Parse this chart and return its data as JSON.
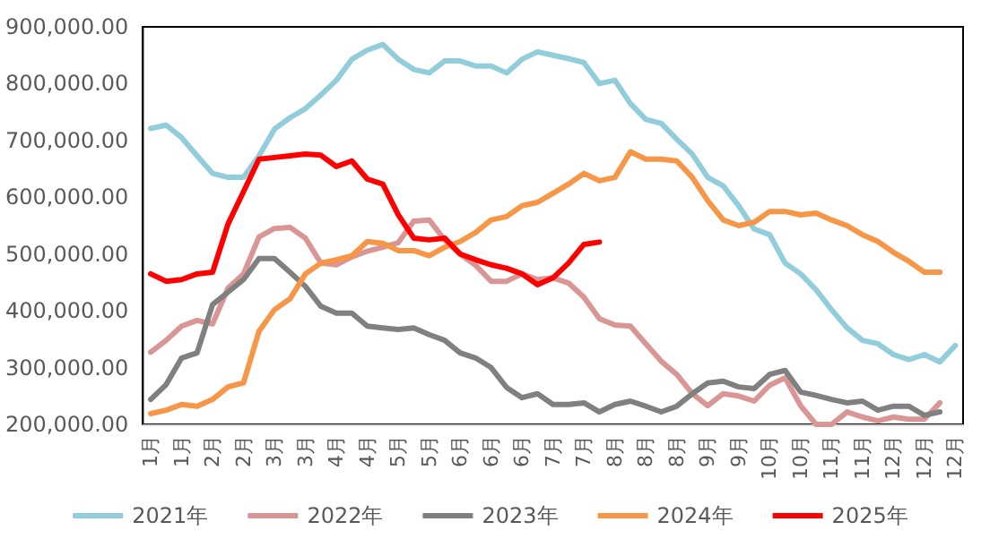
{
  "chart_data": {
    "type": "line",
    "categories": [
      "1月",
      null,
      "1月",
      null,
      "2月",
      null,
      "2月",
      null,
      "3月",
      null,
      "3月",
      null,
      "4月",
      null,
      "4月",
      null,
      "5月",
      null,
      "5月",
      null,
      "6月",
      null,
      "6月",
      null,
      "6月",
      null,
      "7月",
      null,
      "7月",
      null,
      "8月",
      null,
      "8月",
      null,
      "8月",
      null,
      "9月",
      null,
      "9月",
      null,
      "10月",
      null,
      "10月",
      null,
      "11月",
      null,
      "11月",
      null,
      "12月",
      null,
      "12月",
      null,
      "12月"
    ],
    "series": [
      {
        "name": "2021年",
        "color": "#92cddc",
        "values": [
          721000,
          727000,
          705000,
          673000,
          642000,
          635000,
          635000,
          673000,
          720000,
          740000,
          756000,
          780000,
          806000,
          843000,
          859000,
          869000,
          843000,
          825000,
          819000,
          840000,
          840000,
          831000,
          831000,
          819000,
          843000,
          856000,
          850000,
          844000,
          837000,
          800000,
          806000,
          765000,
          737000,
          730000,
          702000,
          676000,
          635000,
          620000,
          585000,
          544000,
          534000,
          484000,
          465000,
          437000,
          402000,
          370000,
          348000,
          342000,
          323000,
          314000,
          323000,
          310000,
          339000
        ]
      },
      {
        "name": "2022年",
        "color": "#da9694",
        "values": [
          327000,
          348000,
          373000,
          383000,
          377000,
          440000,
          465000,
          530000,
          545000,
          547000,
          528000,
          484000,
          481000,
          495000,
          505000,
          512000,
          520000,
          558000,
          560000,
          525000,
          500000,
          480000,
          452000,
          452000,
          465000,
          455000,
          458000,
          449000,
          424000,
          386000,
          375000,
          373000,
          342000,
          311000,
          288000,
          254000,
          233000,
          254000,
          250000,
          241000,
          269000,
          282000,
          233000,
          200000,
          200000,
          222000,
          213000,
          206000,
          213000,
          209000,
          209000,
          238000,
          null
        ]
      },
      {
        "name": "2023年",
        "color": "#808080",
        "values": [
          244000,
          270000,
          317000,
          326000,
          411000,
          433000,
          455000,
          492000,
          492000,
          468000,
          443000,
          408000,
          396000,
          396000,
          373000,
          370000,
          367000,
          370000,
          358000,
          348000,
          326000,
          317000,
          300000,
          265000,
          247000,
          254000,
          235000,
          235000,
          238000,
          222000,
          235000,
          241000,
          232000,
          222000,
          232000,
          254000,
          273000,
          276000,
          266000,
          263000,
          288000,
          295000,
          257000,
          251000,
          244000,
          238000,
          241000,
          225000,
          232000,
          232000,
          216000,
          222000,
          null
        ]
      },
      {
        "name": "2024年",
        "color": "#f79646",
        "values": [
          219000,
          225000,
          235000,
          232000,
          244000,
          266000,
          273000,
          364000,
          402000,
          421000,
          465000,
          484000,
          490000,
          497000,
          522000,
          519000,
          506000,
          506000,
          497000,
          512000,
          522000,
          538000,
          560000,
          566000,
          585000,
          591000,
          607000,
          623000,
          642000,
          629000,
          635000,
          680000,
          667000,
          667000,
          664000,
          635000,
          594000,
          560000,
          550000,
          556000,
          575000,
          575000,
          569000,
          572000,
          560000,
          550000,
          534000,
          522000,
          503000,
          487000,
          468000,
          468000,
          null
        ]
      },
      {
        "name": "2025年",
        "color": "#ff0000",
        "values": [
          465000,
          452000,
          455000,
          465000,
          468000,
          553000,
          610000,
          667000,
          670000,
          673000,
          676000,
          674000,
          654000,
          664000,
          632000,
          623000,
          569000,
          528000,
          525000,
          528000,
          500000,
          490000,
          481000,
          475000,
          465000,
          446000,
          458000,
          484000,
          517000,
          521000,
          null,
          null,
          null,
          null,
          null,
          null,
          null,
          null,
          null,
          null,
          null,
          null,
          null,
          null,
          null,
          null,
          null,
          null,
          null,
          null,
          null,
          null,
          null
        ]
      }
    ],
    "ylim": [
      200000,
      900000
    ],
    "yticks": [
      {
        "value": 200000,
        "label": "200,000.00"
      },
      {
        "value": 300000,
        "label": "300,000.00"
      },
      {
        "value": 400000,
        "label": "400,000.00"
      },
      {
        "value": 500000,
        "label": "500,000.00"
      },
      {
        "value": 600000,
        "label": "600,000.00"
      },
      {
        "value": 700000,
        "label": "700,000.00"
      },
      {
        "value": 800000,
        "label": "800,000.00"
      },
      {
        "value": 900000,
        "label": "900,000.00"
      }
    ],
    "grid": false,
    "legend": "bottom",
    "line_style": "solid"
  }
}
